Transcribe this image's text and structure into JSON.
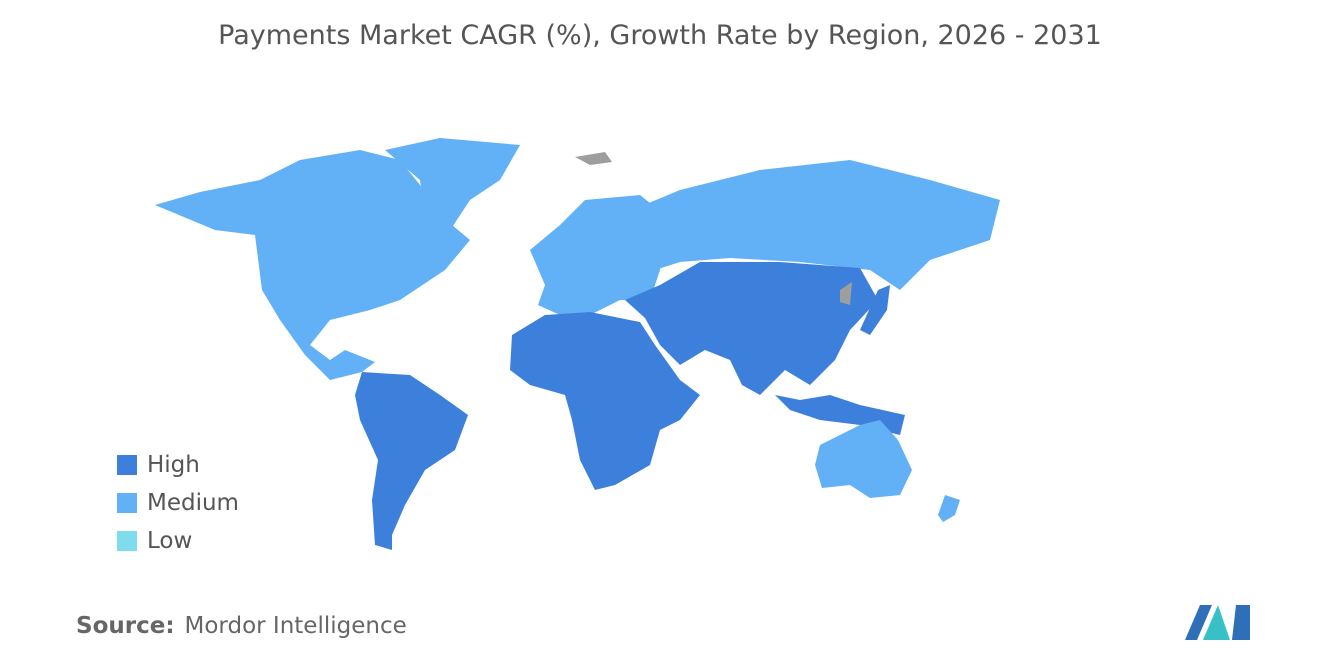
{
  "title": "Payments Market CAGR (%), Growth Rate by Region, 2026 - 2031",
  "legend": [
    {
      "label": "High",
      "color": "#3d80db"
    },
    {
      "label": "Medium",
      "color": "#62b0f5"
    },
    {
      "label": "Low",
      "color": "#7fdcec"
    }
  ],
  "source": {
    "label": "Source:",
    "text": "Mordor Intelligence"
  }
}
